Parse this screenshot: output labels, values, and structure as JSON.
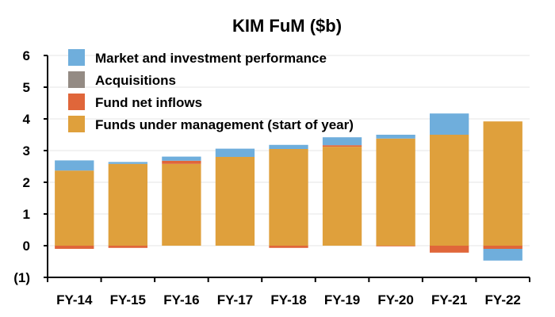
{
  "chart_data": {
    "type": "bar",
    "stacked": true,
    "title": "KIM FuM ($b)",
    "xlabel": "",
    "ylabel": "",
    "categories": [
      "FY-14",
      "FY-15",
      "FY-16",
      "FY-17",
      "FY-18",
      "FY-19",
      "FY-20",
      "FY-21",
      "FY-22"
    ],
    "ylim": [
      -1,
      6
    ],
    "yticks": [
      -1,
      0,
      1,
      2,
      3,
      4,
      5,
      6
    ],
    "ytick_labels": [
      "(1)",
      "0",
      "1",
      "2",
      "3",
      "4",
      "5",
      "6"
    ],
    "grid": true,
    "legend_position": "top-left",
    "series": [
      {
        "name": "Funds under management (start of year)",
        "color": "#DFA03C",
        "values": [
          2.37,
          2.58,
          2.58,
          2.8,
          3.05,
          3.12,
          3.38,
          3.5,
          3.92
        ]
      },
      {
        "name": "Fund net inflows",
        "color": "#E0663A",
        "values": [
          -0.1,
          -0.07,
          0.1,
          0.0,
          -0.07,
          0.05,
          -0.02,
          -0.22,
          -0.1
        ]
      },
      {
        "name": "Acquisitions",
        "color": "#948B84",
        "values": [
          0,
          0,
          0,
          0,
          0,
          0,
          0,
          0,
          0
        ]
      },
      {
        "name": "Market and investment performance",
        "color": "#6FAEDC",
        "values": [
          0.32,
          0.06,
          0.13,
          0.26,
          0.13,
          0.25,
          0.12,
          0.67,
          -0.37
        ]
      }
    ],
    "legend_order": [
      3,
      2,
      1,
      0
    ]
  }
}
